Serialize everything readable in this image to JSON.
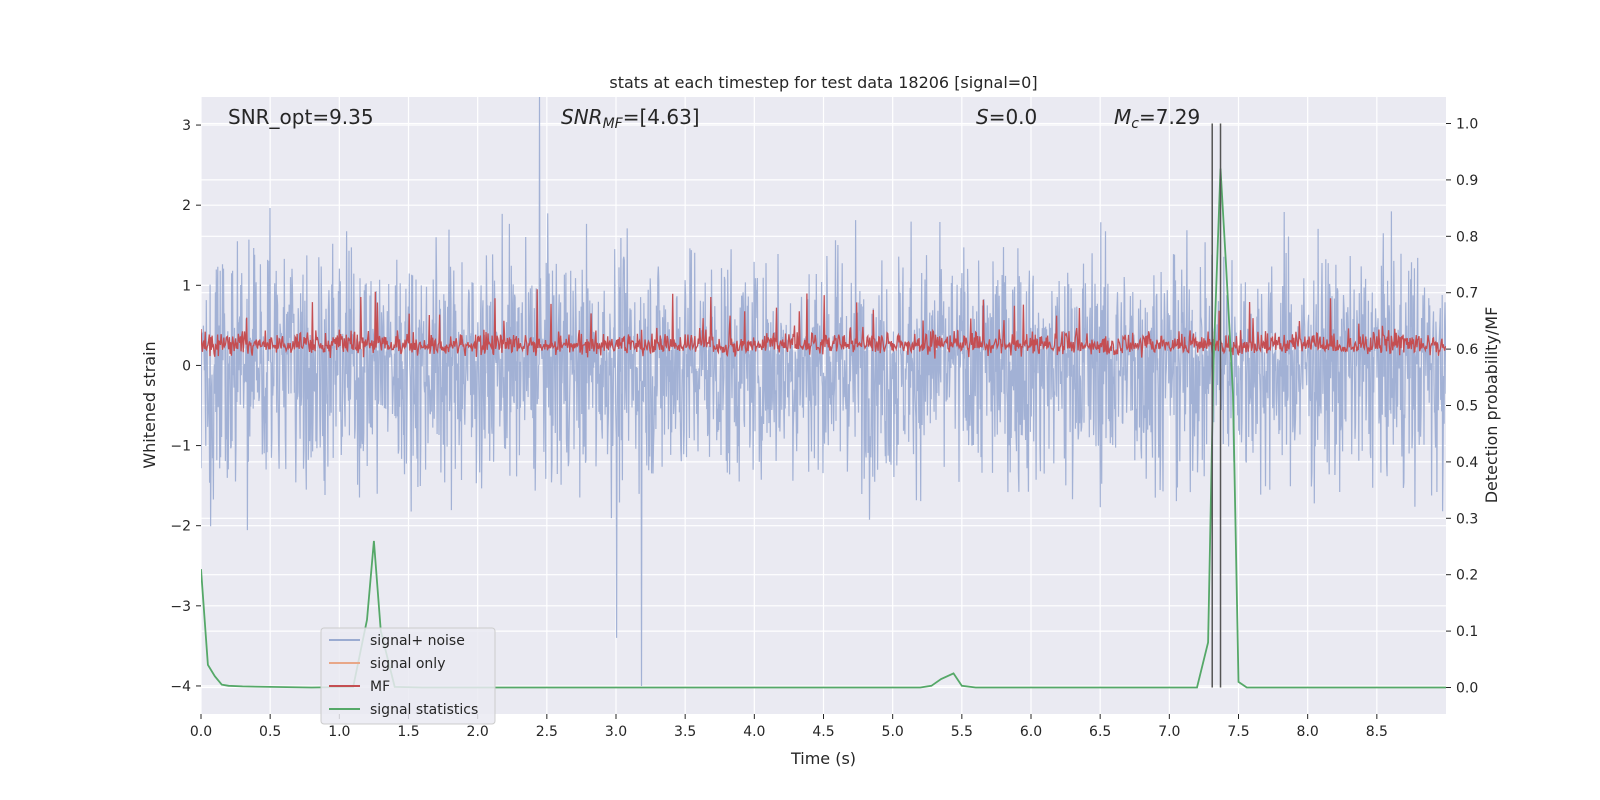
{
  "chart_data": {
    "type": "line",
    "title": "stats at each timestep for test data 18206 [signal=0]",
    "xlabel": "Time (s)",
    "ylabel_left": "Whitened strain",
    "ylabel_right": "Detection probability/MF",
    "xlim": [
      0.0,
      9.0
    ],
    "ylim_left": [
      -4.35,
      3.35
    ],
    "ylim_right": [
      -0.047,
      1.047
    ],
    "x_ticks": [
      "0.0",
      "0.5",
      "1.0",
      "1.5",
      "2.0",
      "2.5",
      "3.0",
      "3.5",
      "4.0",
      "4.5",
      "5.0",
      "5.5",
      "6.0",
      "6.5",
      "7.0",
      "7.5",
      "8.0",
      "8.5"
    ],
    "y_ticks_left": [
      "3",
      "2",
      "1",
      "0",
      "−1",
      "−2",
      "−3",
      "−4"
    ],
    "y_ticks_right": [
      "1.0",
      "0.9",
      "0.8",
      "0.7",
      "0.6",
      "0.5",
      "0.4",
      "0.3",
      "0.2",
      "0.1",
      "0.0"
    ],
    "annotations": {
      "snr_opt": "SNR_opt=9.35",
      "snr_mf_main": "SNR",
      "snr_mf_sub": "MF",
      "snr_mf_value": "=[4.63]",
      "s_main": "S",
      "s_value": "=0.0",
      "mc_main": "M",
      "mc_sub": "c",
      "mc_value": "=7.29"
    },
    "vlines_x": [
      7.31,
      7.37
    ],
    "series": [
      {
        "name": "signal+ noise",
        "color": "#9aabd1",
        "axis": "left",
        "kind": "noise",
        "amplitude_envelope": 2.4,
        "extremes": [
          3.35,
          -4.0
        ]
      },
      {
        "name": "signal only",
        "color": "#e8a788",
        "axis": "left",
        "kind": "flat",
        "value": 0.0
      },
      {
        "name": "MF",
        "color": "#c44e52",
        "axis": "left",
        "kind": "noise",
        "baseline": 0.25,
        "range": [
          0.0,
          0.95
        ]
      },
      {
        "name": "signal statistics",
        "color": "#55a868",
        "axis": "right",
        "x": [
          0.0,
          0.05,
          0.1,
          0.15,
          0.2,
          0.3,
          0.5,
          0.8,
          1.1,
          1.2,
          1.25,
          1.3,
          1.4,
          1.6,
          2.0,
          3.0,
          4.0,
          5.0,
          5.2,
          5.28,
          5.35,
          5.44,
          5.5,
          5.6,
          6.0,
          7.0,
          7.2,
          7.28,
          7.32,
          7.37,
          7.41,
          7.46,
          7.5,
          7.56,
          8.0,
          9.0
        ],
        "y": [
          0.21,
          0.04,
          0.02,
          0.005,
          0.003,
          0.002,
          0.001,
          0.0,
          0.001,
          0.12,
          0.26,
          0.1,
          0.001,
          0.0,
          0.0,
          0.0,
          0.0,
          0.0,
          0.0,
          0.003,
          0.015,
          0.025,
          0.003,
          0.0,
          0.0,
          0.0,
          0.0,
          0.08,
          0.58,
          0.92,
          0.75,
          0.52,
          0.01,
          0.0,
          0.0,
          0.0
        ]
      }
    ],
    "legend": {
      "location": "lower-left",
      "entries": [
        "signal+ noise",
        "signal only",
        "MF",
        "signal statistics"
      ]
    }
  },
  "colors": {
    "background": "#eaeaf2",
    "grid": "#ffffff",
    "vline": "#555555"
  }
}
